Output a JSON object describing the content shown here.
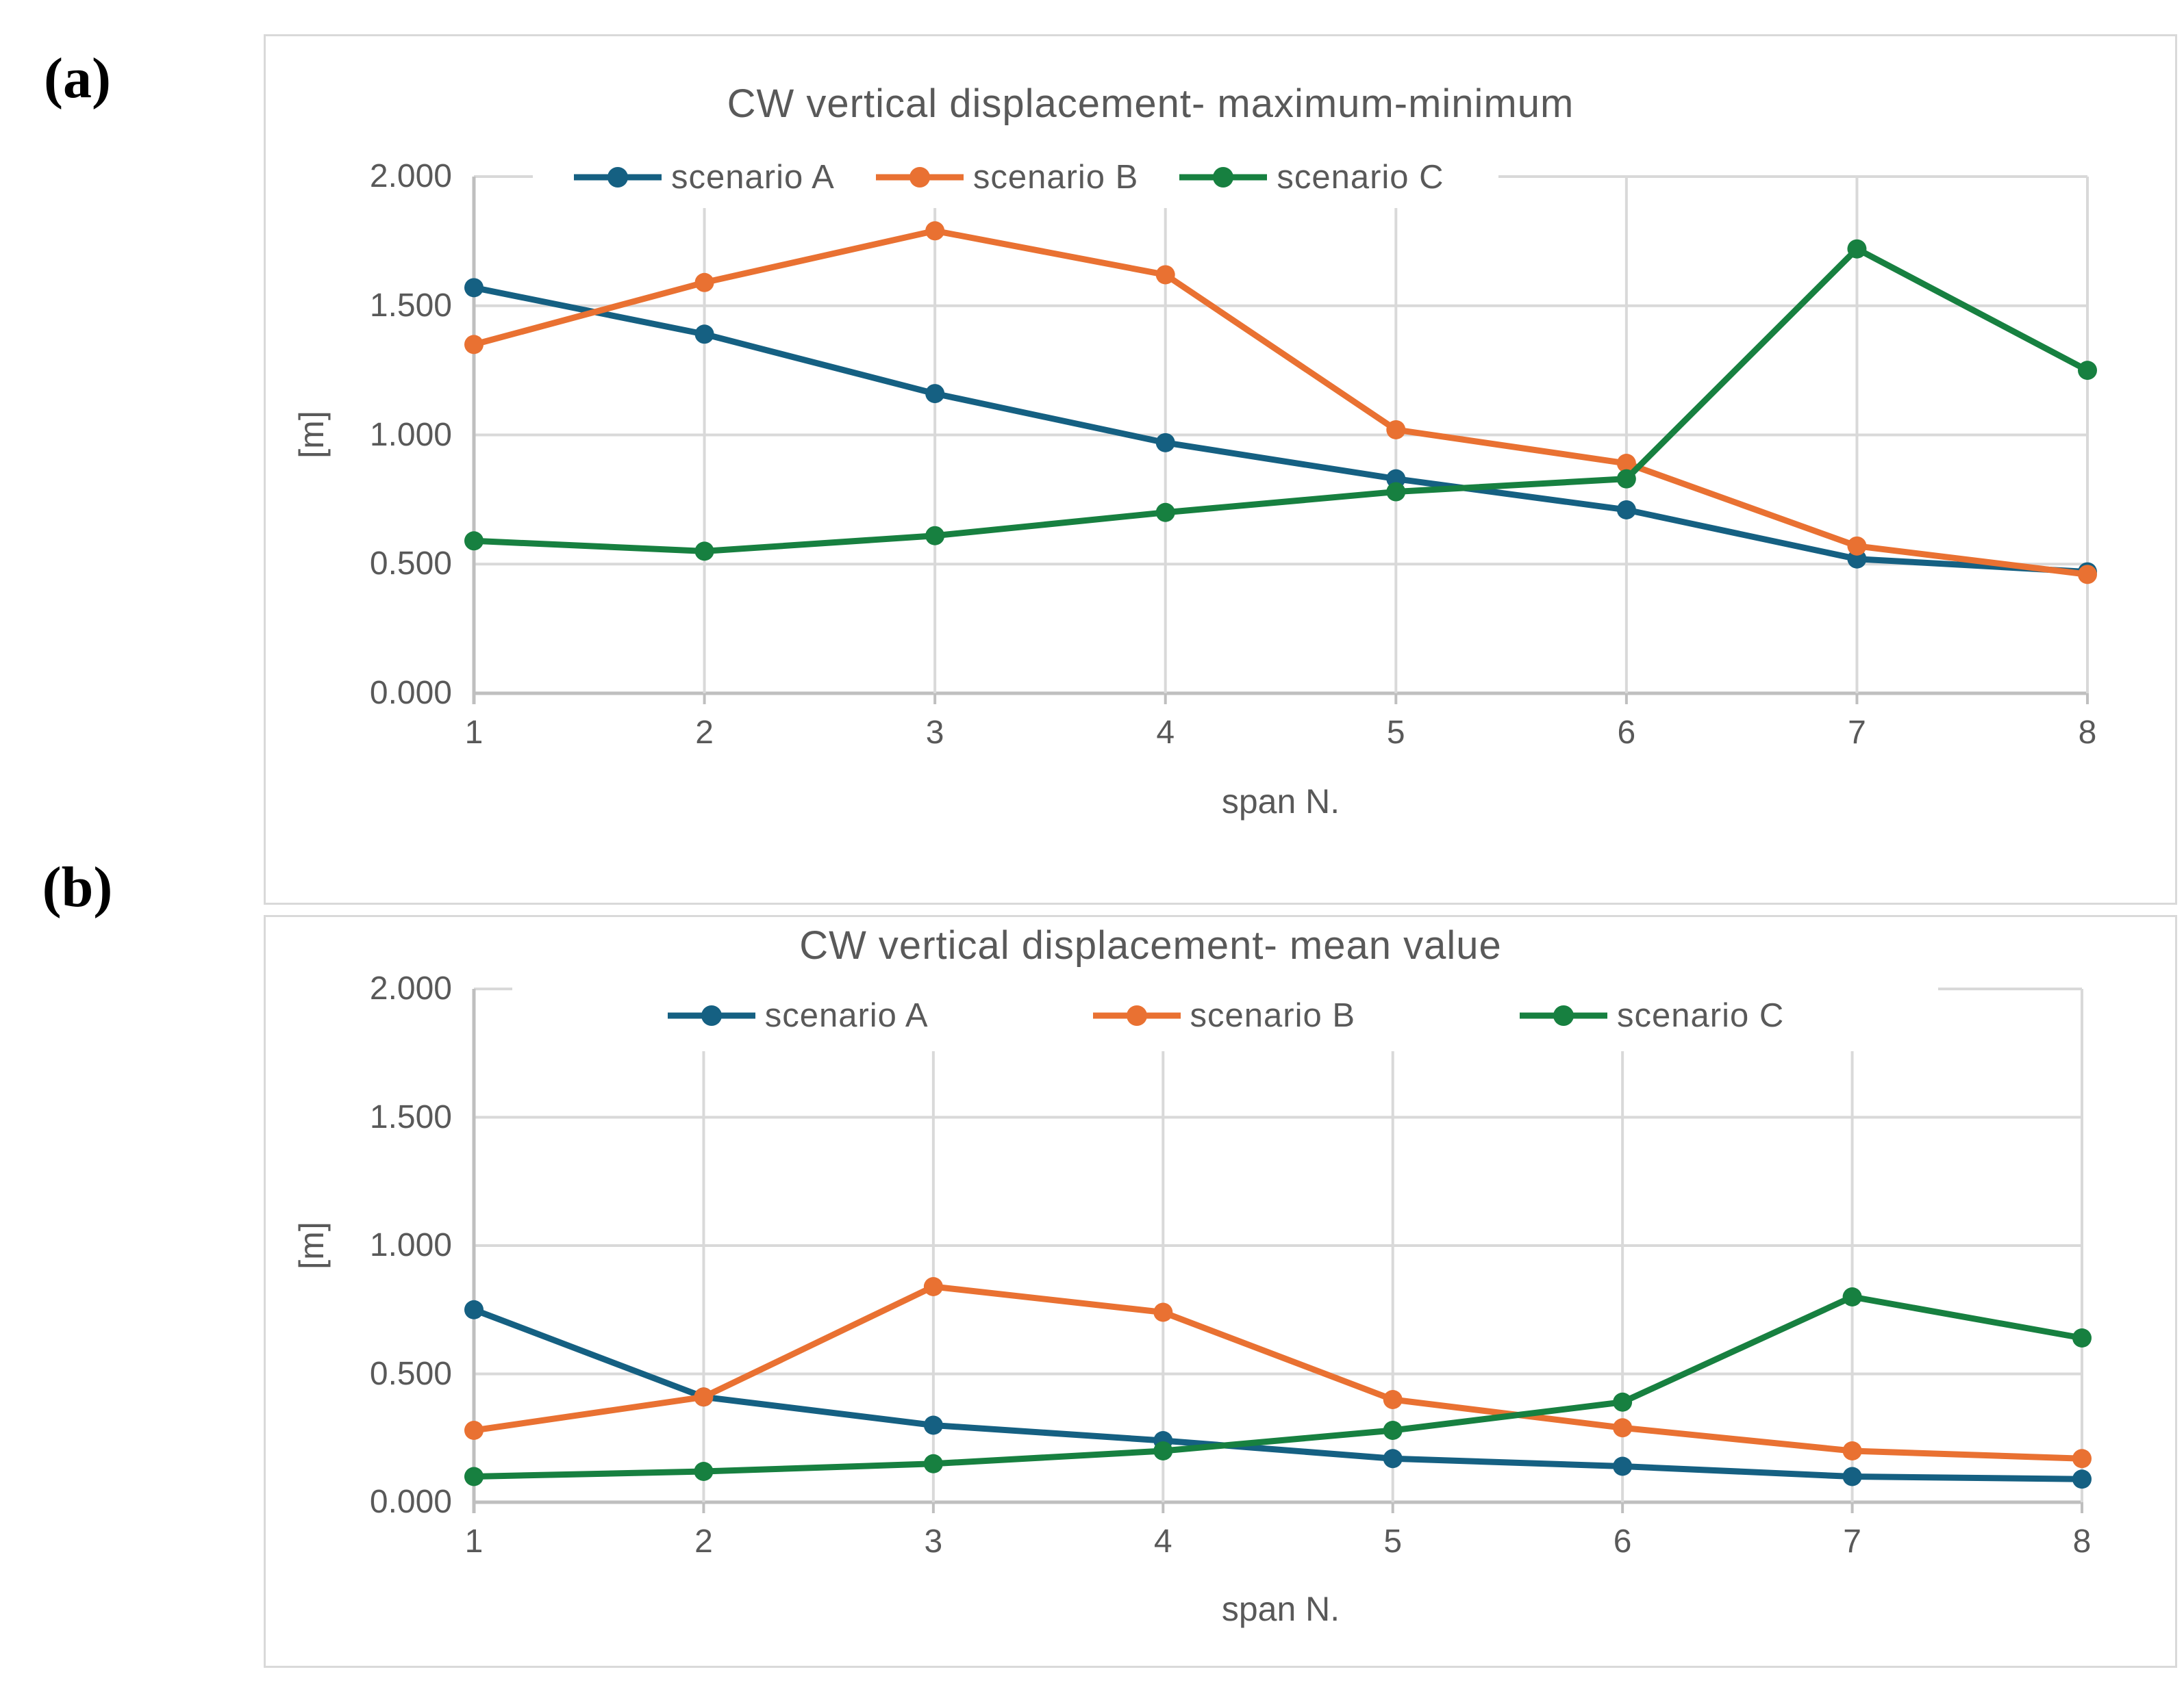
{
  "figure": {
    "panel_labels": [
      "(a)",
      "(b)"
    ]
  },
  "colors": {
    "scenario_a": "#156082",
    "scenario_b": "#E97132",
    "scenario_c": "#178040",
    "gridline": "#d9d9d9",
    "axis_line": "#bfbfbf",
    "text": "#595959",
    "panel_border": "#d9d9d9",
    "background": "#ffffff"
  },
  "chart_data": [
    {
      "type": "line",
      "panel": "a",
      "title": "CW vertical displacement- maximum-minimum",
      "xlabel": "span N.",
      "ylabel": "[m]",
      "categories": [
        "1",
        "2",
        "3",
        "4",
        "5",
        "6",
        "7",
        "8"
      ],
      "ylim": [
        0,
        2
      ],
      "yticks": [
        "0.000",
        "0.500",
        "1.000",
        "1.500",
        "2.000"
      ],
      "grid": true,
      "legend_position": "top-inside",
      "series": [
        {
          "name": "scenario A",
          "color": "#156082",
          "values": [
            1.57,
            1.39,
            1.16,
            0.97,
            0.83,
            0.71,
            0.52,
            0.47
          ]
        },
        {
          "name": "scenario B",
          "color": "#E97132",
          "values": [
            1.35,
            1.59,
            1.79,
            1.62,
            1.02,
            0.89,
            0.57,
            0.46
          ]
        },
        {
          "name": "scenario C",
          "color": "#178040",
          "values": [
            0.59,
            0.55,
            0.61,
            0.7,
            0.78,
            0.83,
            1.72,
            1.25
          ]
        }
      ]
    },
    {
      "type": "line",
      "panel": "b",
      "title": "CW vertical displacement- mean value",
      "xlabel": "span N.",
      "ylabel": "[m]",
      "categories": [
        "1",
        "2",
        "3",
        "4",
        "5",
        "6",
        "7",
        "8"
      ],
      "ylim": [
        0,
        2
      ],
      "yticks": [
        "0.000",
        "0.500",
        "1.000",
        "1.500",
        "2.000"
      ],
      "grid": true,
      "legend_position": "top-inside",
      "series": [
        {
          "name": "scenario A",
          "color": "#156082",
          "values": [
            0.75,
            0.41,
            0.3,
            0.24,
            0.17,
            0.14,
            0.1,
            0.09
          ]
        },
        {
          "name": "scenario B",
          "color": "#E97132",
          "values": [
            0.28,
            0.41,
            0.84,
            0.74,
            0.4,
            0.29,
            0.2,
            0.17
          ]
        },
        {
          "name": "scenario C",
          "color": "#178040",
          "values": [
            0.1,
            0.12,
            0.15,
            0.2,
            0.28,
            0.39,
            0.8,
            0.64
          ]
        }
      ]
    }
  ]
}
